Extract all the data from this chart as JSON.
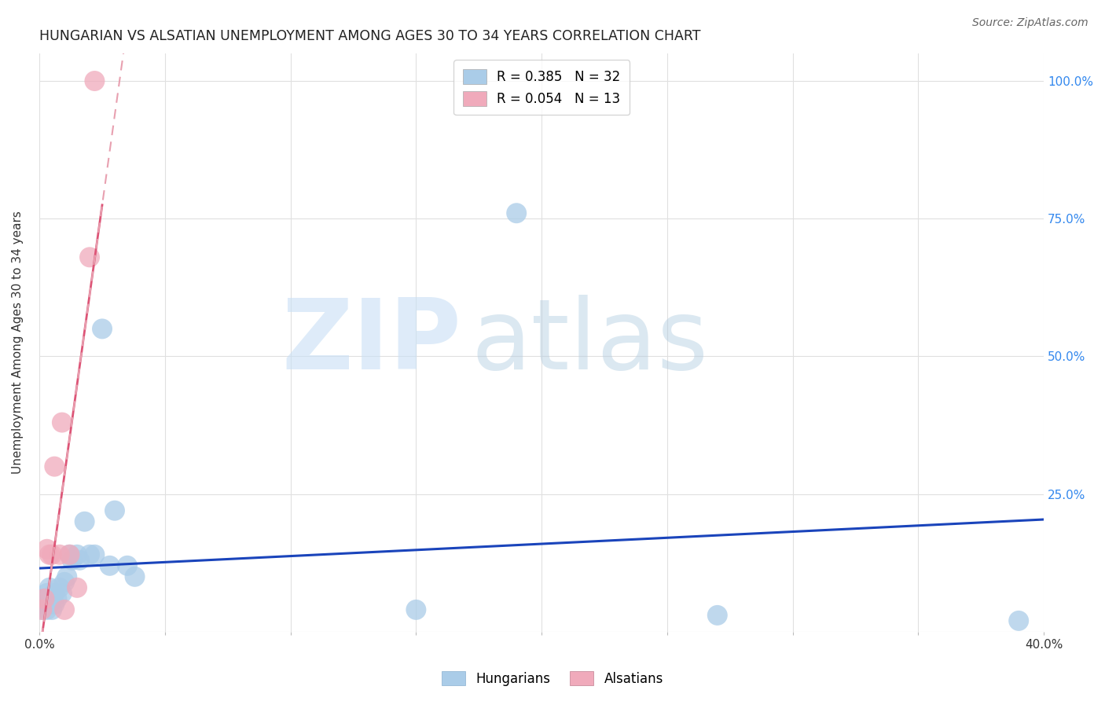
{
  "title": "HUNGARIAN VS ALSATIAN UNEMPLOYMENT AMONG AGES 30 TO 34 YEARS CORRELATION CHART",
  "source": "Source: ZipAtlas.com",
  "ylabel": "Unemployment Among Ages 30 to 34 years",
  "xlim": [
    0.0,
    0.4
  ],
  "ylim": [
    0.0,
    1.05
  ],
  "xticks": [
    0.0,
    0.05,
    0.1,
    0.15,
    0.2,
    0.25,
    0.3,
    0.35,
    0.4
  ],
  "xtick_labels": [
    "0.0%",
    "",
    "",
    "",
    "",
    "",
    "",
    "",
    "40.0%"
  ],
  "ytick_labels_right": [
    "",
    "25.0%",
    "50.0%",
    "75.0%",
    "100.0%"
  ],
  "ytick_positions_right": [
    0.0,
    0.25,
    0.5,
    0.75,
    1.0
  ],
  "hungarian_color": "#aacce8",
  "alsatian_color": "#f0aabb",
  "hungarian_line_color": "#1a44bb",
  "alsatian_line_color": "#dd5577",
  "alsatian_dash_color": "#e8a0b0",
  "background_color": "#ffffff",
  "grid_color": "#e0e0e0",
  "hungarian_x": [
    0.001,
    0.002,
    0.002,
    0.003,
    0.003,
    0.004,
    0.004,
    0.005,
    0.005,
    0.006,
    0.006,
    0.007,
    0.008,
    0.009,
    0.01,
    0.011,
    0.012,
    0.013,
    0.015,
    0.016,
    0.018,
    0.02,
    0.022,
    0.025,
    0.028,
    0.03,
    0.035,
    0.038,
    0.19,
    0.27,
    0.15,
    0.39
  ],
  "hungarian_y": [
    0.04,
    0.05,
    0.06,
    0.04,
    0.07,
    0.05,
    0.08,
    0.06,
    0.04,
    0.07,
    0.05,
    0.06,
    0.08,
    0.07,
    0.09,
    0.1,
    0.14,
    0.13,
    0.14,
    0.13,
    0.2,
    0.14,
    0.14,
    0.55,
    0.12,
    0.22,
    0.12,
    0.1,
    0.76,
    0.03,
    0.04,
    0.02
  ],
  "alsatian_x": [
    0.001,
    0.002,
    0.003,
    0.004,
    0.005,
    0.006,
    0.008,
    0.009,
    0.01,
    0.012,
    0.015,
    0.02,
    0.022
  ],
  "alsatian_y": [
    0.04,
    0.06,
    0.15,
    0.14,
    0.14,
    0.3,
    0.14,
    0.38,
    0.04,
    0.14,
    0.08,
    0.68,
    1.0
  ],
  "watermark_zip": "ZIP",
  "watermark_atlas": "atlas",
  "legend_entries": [
    {
      "label": "R = 0.385   N = 32",
      "color": "#aacce8"
    },
    {
      "label": "R = 0.054   N = 13",
      "color": "#f0aabb"
    }
  ],
  "bottom_legend": [
    {
      "label": "Hungarians",
      "color": "#aacce8"
    },
    {
      "label": "Alsatians",
      "color": "#f0aabb"
    }
  ]
}
